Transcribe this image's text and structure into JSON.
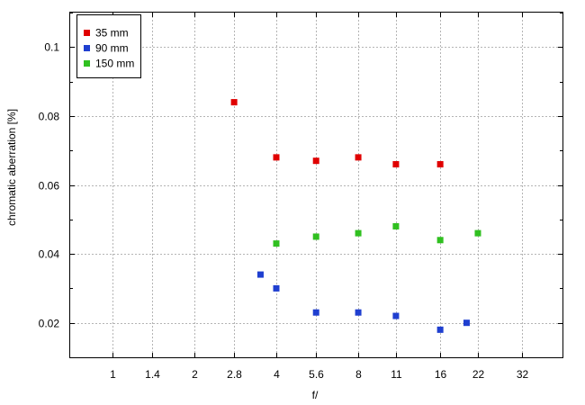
{
  "chart_data": {
    "type": "scatter",
    "xlabel": "f/",
    "ylabel": "chromatic  aberration [%]",
    "x_scale": "log2",
    "x_ticks": [
      {
        "value": 1,
        "label": "1"
      },
      {
        "value": 1.4,
        "label": "1.4"
      },
      {
        "value": 2,
        "label": "2"
      },
      {
        "value": 2.8,
        "label": "2.8"
      },
      {
        "value": 4,
        "label": "4"
      },
      {
        "value": 5.6,
        "label": "5.6"
      },
      {
        "value": 8,
        "label": "8"
      },
      {
        "value": 11,
        "label": "11"
      },
      {
        "value": 16,
        "label": "16"
      },
      {
        "value": 22,
        "label": "22"
      },
      {
        "value": 32,
        "label": "32"
      }
    ],
    "xlim": [
      0.7,
      45
    ],
    "y_ticks": [
      {
        "value": 0.02,
        "label": "0.02"
      },
      {
        "value": 0.04,
        "label": "0.04"
      },
      {
        "value": 0.06,
        "label": "0.06"
      },
      {
        "value": 0.08,
        "label": "0.08"
      },
      {
        "value": 0.1,
        "label": "0.1"
      }
    ],
    "ylim": [
      0.01,
      0.11
    ],
    "grid": true,
    "legend_position": "top-left",
    "series": [
      {
        "name": "35 mm",
        "color": "#e00000",
        "points": [
          {
            "x": 2.8,
            "y": 0.084
          },
          {
            "x": 4,
            "y": 0.068
          },
          {
            "x": 5.6,
            "y": 0.067
          },
          {
            "x": 8,
            "y": 0.068
          },
          {
            "x": 11,
            "y": 0.066
          },
          {
            "x": 16,
            "y": 0.066
          }
        ]
      },
      {
        "name": "90 mm",
        "color": "#1f3fd0",
        "points": [
          {
            "x": 3.5,
            "y": 0.034
          },
          {
            "x": 4,
            "y": 0.03
          },
          {
            "x": 5.6,
            "y": 0.023
          },
          {
            "x": 8,
            "y": 0.023
          },
          {
            "x": 11,
            "y": 0.022
          },
          {
            "x": 16,
            "y": 0.018
          },
          {
            "x": 20,
            "y": 0.02
          }
        ]
      },
      {
        "name": "150 mm",
        "color": "#30c020",
        "points": [
          {
            "x": 4,
            "y": 0.043
          },
          {
            "x": 5.6,
            "y": 0.045
          },
          {
            "x": 8,
            "y": 0.046
          },
          {
            "x": 11,
            "y": 0.048
          },
          {
            "x": 16,
            "y": 0.044
          },
          {
            "x": 22,
            "y": 0.046
          }
        ]
      }
    ]
  }
}
